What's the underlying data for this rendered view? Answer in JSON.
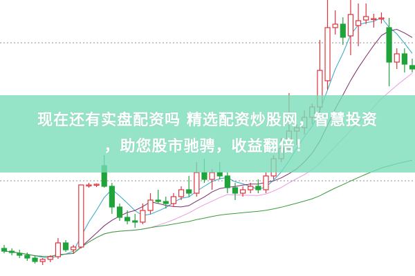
{
  "banner": {
    "line1": "现在还有实盘配资吗 精选配资炒股网，智慧投资",
    "line2": "，助您股市驰骋，收益翻倍！"
  },
  "colors": {
    "up": "#e0303a",
    "down": "#1fa33a",
    "ma5": "#2aa6c8",
    "ma10": "#7a2a6a",
    "ma20": "#e79be0",
    "ma60": "#3a9a3a",
    "banner": "#78dcb9",
    "ref_line": "#888888"
  },
  "chart_data": {
    "type": "candlestick",
    "title": "",
    "y_range": [
      0,
      40
    ],
    "grid": false,
    "reference_lines": [
      33.8,
      13.8
    ],
    "moving_averages": [
      5,
      10,
      20,
      60
    ],
    "candles": [
      [
        4.0,
        4.5,
        3.3,
        3.6
      ],
      [
        3.6,
        4.0,
        3.0,
        3.4
      ],
      [
        3.3,
        3.8,
        2.6,
        3.0
      ],
      [
        3.0,
        3.4,
        2.2,
        2.6
      ],
      [
        2.6,
        3.0,
        1.8,
        2.1
      ],
      [
        2.1,
        2.6,
        1.6,
        2.4
      ],
      [
        2.4,
        3.0,
        2.0,
        2.8
      ],
      [
        2.8,
        5.5,
        2.5,
        4.8
      ],
      [
        4.8,
        5.2,
        3.5,
        3.8
      ],
      [
        3.8,
        4.5,
        3.2,
        4.2
      ],
      [
        4.2,
        13.2,
        4.0,
        13.2
      ],
      [
        13.2,
        13.5,
        12.8,
        13.2
      ],
      [
        13.2,
        13.4,
        12.9,
        13.3
      ],
      [
        16.0,
        17.5,
        12.8,
        13.0
      ],
      [
        13.0,
        13.5,
        9.0,
        10.0
      ],
      [
        10.0,
        10.5,
        8.0,
        8.5
      ],
      [
        8.5,
        9.5,
        7.5,
        8.0
      ],
      [
        8.0,
        9.0,
        7.0,
        7.8
      ],
      [
        7.8,
        10.5,
        7.5,
        9.5
      ],
      [
        9.5,
        12.0,
        9.0,
        11.0
      ],
      [
        11.0,
        12.5,
        10.5,
        10.8
      ],
      [
        10.8,
        11.5,
        9.8,
        10.5
      ],
      [
        10.5,
        12.0,
        10.0,
        11.5
      ],
      [
        11.5,
        13.0,
        11.0,
        12.5
      ],
      [
        12.5,
        14.5,
        11.5,
        12.0
      ],
      [
        12.0,
        16.5,
        11.5,
        15.0
      ],
      [
        15.0,
        17.0,
        13.5,
        14.0
      ],
      [
        14.0,
        15.5,
        12.5,
        15.0
      ],
      [
        15.0,
        16.5,
        14.0,
        14.5
      ],
      [
        14.5,
        15.0,
        12.0,
        12.8
      ],
      [
        12.8,
        13.5,
        11.0,
        12.0
      ],
      [
        12.0,
        13.0,
        11.5,
        12.5
      ],
      [
        12.5,
        13.5,
        12.0,
        13.0
      ],
      [
        13.0,
        14.0,
        12.0,
        12.5
      ],
      [
        12.5,
        15.0,
        12.0,
        14.5
      ],
      [
        14.5,
        17.5,
        14.0,
        17.0
      ],
      [
        17.0,
        20.0,
        16.5,
        18.5
      ],
      [
        18.5,
        26.5,
        18.0,
        21.0
      ],
      [
        21.0,
        22.0,
        19.0,
        21.5
      ],
      [
        21.5,
        24.0,
        20.5,
        23.0
      ],
      [
        23.0,
        25.0,
        22.0,
        24.5
      ],
      [
        24.5,
        34.2,
        23.5,
        29.8
      ],
      [
        28.3,
        40.0,
        27.0,
        36.0
      ],
      [
        36.0,
        38.5,
        35.0,
        36.5
      ],
      [
        36.5,
        37.5,
        33.5,
        34.6
      ],
      [
        34.8,
        40.0,
        32.0,
        37.9
      ],
      [
        36.3,
        39.5,
        33.3,
        37.0
      ],
      [
        37.1,
        39.5,
        36.5,
        37.6
      ],
      [
        37.3,
        38.0,
        36.0,
        37.3
      ],
      [
        37.4,
        38.2,
        36.6,
        37.4
      ],
      [
        36.0,
        37.4,
        27.5,
        31.0
      ],
      [
        31.0,
        33.0,
        30.0,
        32.2
      ],
      [
        32.2,
        33.0,
        29.5,
        30.7
      ],
      [
        30.5,
        31.5,
        29.5,
        30.0
      ]
    ]
  }
}
